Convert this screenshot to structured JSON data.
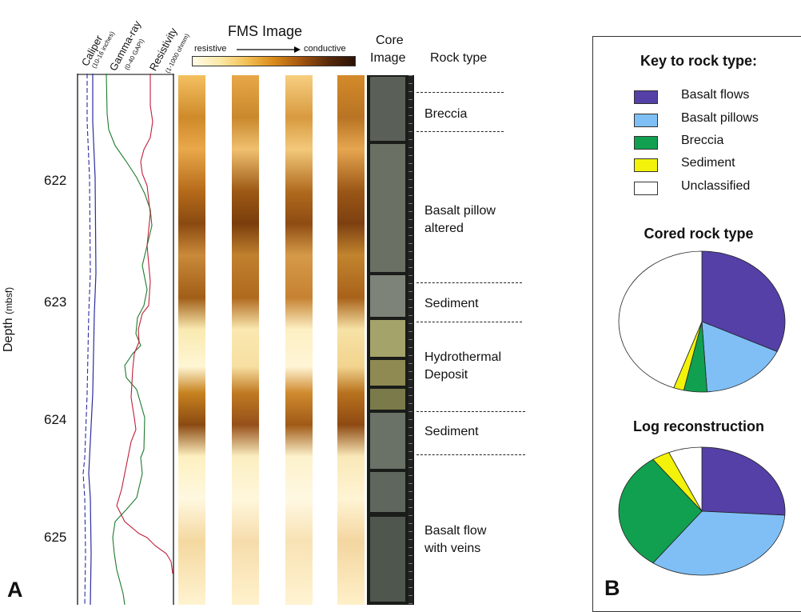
{
  "panel_a": {
    "letter": "A",
    "depth_axis": {
      "label": "Depth",
      "unit": "(mbsf)",
      "ticks": [
        "622",
        "623",
        "624",
        "625"
      ]
    },
    "tracks": {
      "caliper": {
        "name": "Caliper",
        "range": "(10-16 inches)",
        "color": "#2c2ca0"
      },
      "gamma": {
        "name": "Gamma-ray",
        "range": "(0-40 GAPI)",
        "color": "#1e7a2e"
      },
      "resistivity": {
        "name": "Resistivity",
        "range": "(1-1000 ohmm)",
        "color": "#c0203a"
      }
    },
    "fms": {
      "title": "FMS Image",
      "left_label": "resistive",
      "right_label": "conductive"
    },
    "core": {
      "label_line1": "Core",
      "label_line2": "Image"
    },
    "rock_header": "Rock type",
    "rock_units": [
      {
        "line1": "Breccia",
        "line2": ""
      },
      {
        "line1": "Basalt pillow",
        "line2": "altered"
      },
      {
        "line1": "Sediment",
        "line2": ""
      },
      {
        "line1": "Hydrothermal",
        "line2": "Deposit"
      },
      {
        "line1": "Sediment",
        "line2": ""
      },
      {
        "line1": "Basalt flow",
        "line2": "with veins"
      }
    ]
  },
  "panel_b": {
    "letter": "B",
    "key_title": "Key to rock type:",
    "key": [
      {
        "label": "Basalt flows",
        "color": "#5440a6"
      },
      {
        "label": "Basalt pillows",
        "color": "#7fbff5"
      },
      {
        "label": "Breccia",
        "color": "#11a050"
      },
      {
        "label": "Sediment",
        "color": "#f2f20a"
      },
      {
        "label": "Unclassified",
        "color": "#ffffff"
      }
    ]
  },
  "chart_data": [
    {
      "type": "pie",
      "title": "Cored rock type",
      "categories": [
        "Basalt flows",
        "Basalt pillows",
        "Breccia",
        "Sediment",
        "Unclassified"
      ],
      "values": [
        32,
        17,
        4.5,
        2,
        44.5
      ]
    },
    {
      "type": "pie",
      "title": "Log reconstruction",
      "categories": [
        "Basalt flows",
        "Basalt pillows",
        "Breccia",
        "Sediment",
        "Unclassified"
      ],
      "values": [
        26,
        34,
        30,
        3.5,
        6.5
      ]
    }
  ]
}
